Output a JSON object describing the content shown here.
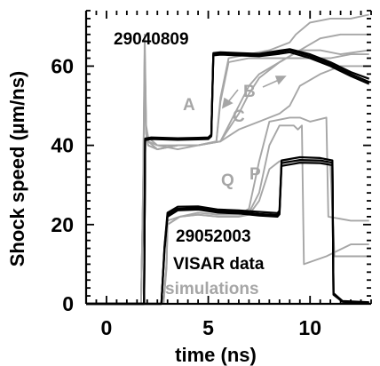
{
  "chart_data": {
    "type": "line",
    "title": "",
    "xlabel": "time (ns)",
    "ylabel": "Shock speed (µm/ns)",
    "xlim": [
      -1,
      13
    ],
    "ylim": [
      0,
      74
    ],
    "xticks": [
      0,
      5,
      10
    ],
    "yticks": [
      0,
      20,
      40,
      60
    ],
    "colors": {
      "data": "#000000",
      "simulation": "#a6a6a6"
    },
    "annotations": [
      {
        "id": "shot1",
        "text": "29040809",
        "kind": "data"
      },
      {
        "id": "shot2",
        "text": "29052003",
        "kind": "data"
      },
      {
        "id": "legend-data",
        "text": "VISAR data",
        "kind": "data"
      },
      {
        "id": "legend-sim",
        "text": "simulations",
        "kind": "simulation"
      },
      {
        "id": "lbl-A",
        "text": "A",
        "kind": "simulation"
      },
      {
        "id": "lbl-B",
        "text": "B",
        "kind": "simulation"
      },
      {
        "id": "lbl-C",
        "text": "C",
        "kind": "simulation"
      },
      {
        "id": "lbl-Q",
        "text": "Q",
        "kind": "simulation"
      },
      {
        "id": "lbl-P",
        "text": "P",
        "kind": "simulation"
      }
    ],
    "series": [
      {
        "kind": "data",
        "x": [
          -1,
          1.85,
          1.9,
          2.2,
          3.5,
          4.5,
          5.0,
          5.15,
          5.25,
          5.6,
          6.5,
          7.5,
          8.5,
          9.0,
          10.0,
          11.0,
          12.0,
          12.9
        ],
        "y": [
          0,
          0,
          41.5,
          41.8,
          41.6,
          41.7,
          41.8,
          42.5,
          63,
          63.2,
          63,
          62.8,
          63.5,
          64,
          62.5,
          60.5,
          58,
          56
        ]
      },
      {
        "kind": "data",
        "x": [
          -1,
          1.85,
          1.9,
          2.2,
          3.5,
          4.5,
          5.0,
          5.15,
          5.25,
          5.6,
          6.5,
          7.5,
          8.5,
          9.0,
          10.0,
          11.0,
          12.0,
          12.9
        ],
        "y": [
          0,
          0,
          41.3,
          41.6,
          41.4,
          41.5,
          41.6,
          42.3,
          62.7,
          62.9,
          62.7,
          62.5,
          63.1,
          63.5,
          62,
          60,
          57.5,
          55.5
        ]
      },
      {
        "kind": "data",
        "x": [
          -1,
          1.85,
          1.9,
          2.2,
          3.5,
          4.5,
          5.0,
          5.15,
          5.25,
          5.6,
          6.5,
          7.5,
          8.5,
          9.0,
          10.0,
          11.0,
          12.0,
          12.9
        ],
        "y": [
          0,
          0,
          41.7,
          42,
          41.8,
          41.9,
          42,
          42.7,
          63.3,
          63.5,
          63.3,
          63.1,
          63.9,
          64.3,
          63,
          61,
          58.5,
          56.8
        ]
      },
      {
        "kind": "data",
        "x": [
          -1,
          2.7,
          2.85,
          3.0,
          3.5,
          4.5,
          5.5,
          6.5,
          7.5,
          8.4,
          8.5,
          8.6,
          9.5,
          10.5,
          11.1,
          11.15,
          11.6,
          12.9
        ],
        "y": [
          0,
          0,
          14,
          22.5,
          24,
          24.2,
          23.4,
          23.2,
          22.7,
          22.4,
          23,
          35.5,
          36.3,
          36.2,
          35.6,
          2.5,
          0.6,
          0.3
        ]
      },
      {
        "kind": "data",
        "x": [
          -1,
          2.7,
          2.85,
          3.0,
          3.5,
          4.5,
          5.5,
          6.5,
          7.5,
          8.4,
          8.5,
          8.6,
          9.5,
          10.5,
          11.1,
          11.15,
          11.6,
          12.9
        ],
        "y": [
          0,
          0,
          14.5,
          23,
          24.5,
          24.6,
          23.8,
          23.6,
          23.2,
          22.9,
          23.5,
          36.2,
          37,
          36.8,
          36.2,
          2.3,
          0.5,
          0.2
        ]
      },
      {
        "kind": "data",
        "x": [
          -1,
          2.7,
          2.85,
          3.0,
          3.5,
          4.5,
          5.5,
          6.5,
          7.5,
          8.4,
          8.5,
          8.6,
          9.5,
          10.5,
          11.1,
          11.15,
          11.6,
          12.9
        ],
        "y": [
          0,
          0,
          13.5,
          22,
          23.6,
          23.8,
          23,
          22.8,
          22.3,
          22,
          22.6,
          34.8,
          35.6,
          35.5,
          35,
          2.7,
          0.7,
          0.4
        ]
      },
      {
        "kind": "simulation",
        "x": [
          -1,
          1.7,
          1.8,
          1.88,
          1.95,
          2.05,
          2.5,
          3.5,
          4.5,
          5.4,
          5.6,
          6.0,
          7.0,
          8.0,
          9.0,
          9.3,
          10.0,
          11.0,
          12.0,
          12.9
        ],
        "y": [
          0,
          0,
          30,
          68,
          45,
          42,
          40,
          40,
          40,
          41,
          52,
          62,
          63,
          64,
          66,
          68,
          71,
          72,
          72,
          73
        ]
      },
      {
        "kind": "simulation",
        "x": [
          -1,
          1.7,
          1.8,
          1.88,
          1.95,
          2.05,
          2.5,
          3.5,
          4.5,
          5.4,
          5.6,
          6.0,
          7.0,
          8.0,
          9.0,
          10.0,
          11.0,
          12.0,
          12.9
        ],
        "y": [
          0,
          0,
          28,
          64,
          44,
          41,
          40,
          39,
          40,
          41,
          51,
          61,
          62,
          62,
          62,
          62,
          62,
          63,
          63
        ]
      },
      {
        "kind": "simulation",
        "x": [
          -1,
          1.7,
          1.8,
          1.88,
          1.95,
          2.05,
          2.5,
          3.5,
          4.5,
          5.6,
          6.5,
          7.0,
          7.5,
          8.5,
          9.5,
          10.5,
          11.5,
          12.9
        ],
        "y": [
          0,
          0,
          28,
          62,
          44,
          41,
          39,
          40,
          40,
          41,
          50,
          55,
          58,
          61,
          64,
          64,
          63,
          64
        ]
      },
      {
        "kind": "simulation",
        "x": [
          -1,
          1.7,
          1.8,
          1.88,
          1.95,
          2.05,
          2.5,
          3.5,
          4.5,
          5.6,
          6.5,
          7.0,
          7.5,
          8.5,
          9.5,
          10.5,
          11.5,
          12.9
        ],
        "y": [
          0,
          0,
          28,
          60,
          43,
          40,
          39,
          40,
          40,
          41,
          48,
          53,
          57,
          61,
          64,
          67,
          68,
          68
        ]
      },
      {
        "kind": "simulation",
        "x": [
          -1,
          1.7,
          1.8,
          1.88,
          1.95,
          2.05,
          2.5,
          3.5,
          4.5,
          5.6,
          6.5,
          7.5,
          8.5,
          9.0,
          9.5,
          10.5,
          11.5,
          12.9
        ],
        "y": [
          0,
          0,
          26,
          58,
          43,
          40,
          39,
          40,
          40,
          41,
          44,
          46,
          48,
          50,
          55,
          58,
          60,
          60
        ]
      },
      {
        "kind": "simulation",
        "x": [
          -1,
          2.8,
          2.95,
          3.0,
          3.6,
          4.5,
          5.5,
          6.5,
          7.0,
          7.5,
          8.0,
          9.0,
          9.5,
          10.0,
          10.8,
          10.9,
          12.0,
          12.9
        ],
        "y": [
          0,
          0,
          10,
          21,
          22,
          23,
          22.5,
          22.5,
          24,
          36,
          46,
          47,
          47,
          46,
          47,
          22,
          21,
          21
        ]
      },
      {
        "kind": "simulation",
        "x": [
          -1,
          2.8,
          2.95,
          3.0,
          3.6,
          4.5,
          5.5,
          6.5,
          7.0,
          7.5,
          8.0,
          8.5,
          9.2,
          9.4,
          9.6,
          9.7,
          10.8,
          12.0,
          12.9
        ],
        "y": [
          0,
          0,
          10,
          20,
          22,
          22.5,
          22,
          22,
          23,
          28,
          40,
          45,
          45,
          44,
          45,
          10,
          12,
          15,
          15
        ]
      },
      {
        "kind": "simulation",
        "x": [
          -1,
          2.8,
          2.95,
          3.0,
          3.6,
          4.5,
          5.5,
          6.5,
          7.0,
          7.5,
          8.0,
          8.5,
          9.5,
          10.0,
          10.5,
          11.0,
          11.2,
          12.9
        ],
        "y": [
          0,
          0,
          9,
          20,
          22,
          22.5,
          22,
          22,
          22.5,
          26,
          34,
          36,
          36,
          36,
          36,
          35,
          12,
          12
        ]
      }
    ]
  }
}
